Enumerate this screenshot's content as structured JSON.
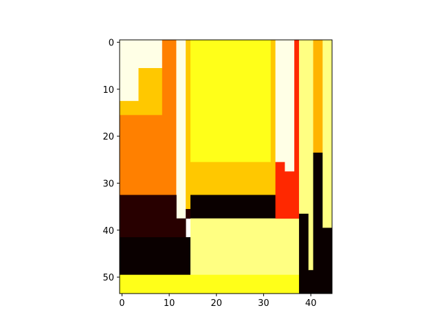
{
  "chart_data": {
    "type": "heatmap",
    "colormap": "hot",
    "grid": false,
    "title": "",
    "xlabel": "",
    "ylabel": "",
    "xlim": [
      -0.5,
      44.5
    ],
    "ylim": [
      53.5,
      -0.5
    ],
    "x_ticks": [
      0,
      10,
      20,
      30,
      40
    ],
    "y_ticks": [
      0,
      10,
      20,
      30,
      40,
      50
    ],
    "x_tick_labels": [
      "0",
      "10",
      "20",
      "30",
      "40"
    ],
    "y_tick_labels": [
      "0",
      "10",
      "20",
      "30",
      "40",
      "50"
    ],
    "regions": [
      {
        "x": [
          0,
          3
        ],
        "y": [
          0,
          12
        ],
        "color": "#ffffe6"
      },
      {
        "x": [
          4,
          8
        ],
        "y": [
          0,
          5
        ],
        "color": "#ffffe6"
      },
      {
        "x": [
          4,
          8
        ],
        "y": [
          6,
          15
        ],
        "color": "#ffc800"
      },
      {
        "x": [
          0,
          3
        ],
        "y": [
          13,
          15
        ],
        "color": "#ffc800"
      },
      {
        "x": [
          9,
          11
        ],
        "y": [
          0,
          15
        ],
        "color": "#ff8000"
      },
      {
        "x": [
          0,
          11
        ],
        "y": [
          16,
          32
        ],
        "color": "#ff8000"
      },
      {
        "x": [
          12,
          13
        ],
        "y": [
          0,
          37
        ],
        "color": "#ffffe6"
      },
      {
        "x": [
          14,
          14
        ],
        "y": [
          0,
          35
        ],
        "color": "#ffc800"
      },
      {
        "x": [
          14,
          14
        ],
        "y": [
          36,
          37
        ],
        "color": "#280000"
      },
      {
        "x": [
          15,
          31
        ],
        "y": [
          0,
          25
        ],
        "color": "#ffff19"
      },
      {
        "x": [
          32,
          32
        ],
        "y": [
          0,
          32
        ],
        "color": "#ffc800"
      },
      {
        "x": [
          15,
          31
        ],
        "y": [
          26,
          32
        ],
        "color": "#ffc800"
      },
      {
        "x": [
          0,
          11
        ],
        "y": [
          33,
          41
        ],
        "color": "#280000"
      },
      {
        "x": [
          12,
          13
        ],
        "y": [
          38,
          41
        ],
        "color": "#280000"
      },
      {
        "x": [
          0,
          14
        ],
        "y": [
          42,
          49
        ],
        "color": "#0a0000"
      },
      {
        "x": [
          15,
          32
        ],
        "y": [
          33,
          37
        ],
        "color": "#0a0000"
      },
      {
        "x": [
          15,
          37
        ],
        "y": [
          38,
          49
        ],
        "color": "#ffff82"
      },
      {
        "x": [
          0,
          37
        ],
        "y": [
          50,
          53
        ],
        "color": "#ffff19"
      },
      {
        "x": [
          33,
          34
        ],
        "y": [
          0,
          25
        ],
        "color": "#ffffe6"
      },
      {
        "x": [
          33,
          34
        ],
        "y": [
          26,
          37
        ],
        "color": "#ff2800"
      },
      {
        "x": [
          35,
          36
        ],
        "y": [
          0,
          27
        ],
        "color": "#ffffe6"
      },
      {
        "x": [
          35,
          37
        ],
        "y": [
          28,
          37
        ],
        "color": "#ff2800"
      },
      {
        "x": [
          37,
          37
        ],
        "y": [
          0,
          27
        ],
        "color": "#ff2800"
      },
      {
        "x": [
          38,
          39
        ],
        "y": [
          0,
          36
        ],
        "color": "#ffff82"
      },
      {
        "x": [
          38,
          39
        ],
        "y": [
          37,
          53
        ],
        "color": "#0a0000"
      },
      {
        "x": [
          40,
          40
        ],
        "y": [
          0,
          48
        ],
        "color": "#ffff82"
      },
      {
        "x": [
          40,
          41
        ],
        "y": [
          49,
          53
        ],
        "color": "#0a0000"
      },
      {
        "x": [
          41,
          42
        ],
        "y": [
          0,
          23
        ],
        "color": "#ffb400"
      },
      {
        "x": [
          41,
          41
        ],
        "y": [
          24,
          48
        ],
        "color": "#0a0000"
      },
      {
        "x": [
          42,
          42
        ],
        "y": [
          24,
          53
        ],
        "color": "#0a0000"
      },
      {
        "x": [
          43,
          44
        ],
        "y": [
          0,
          39
        ],
        "color": "#ffff82"
      },
      {
        "x": [
          43,
          44
        ],
        "y": [
          40,
          53
        ],
        "color": "#0a0000"
      }
    ]
  }
}
